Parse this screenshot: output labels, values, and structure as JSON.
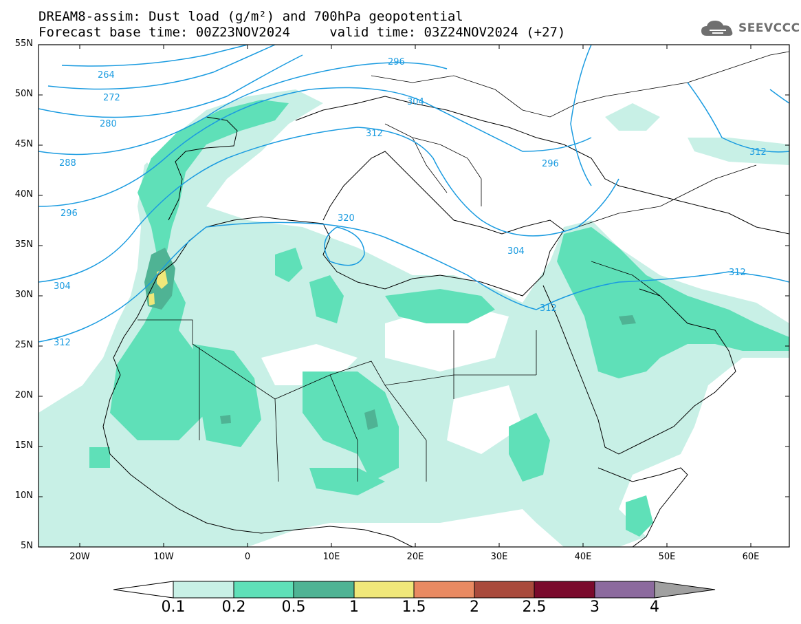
{
  "title": {
    "line1": "DREAM8-assim: Dust load (g/m²) and 700hPa geopotential",
    "line2": "Forecast base time: 00Z23NOV2024     valid time: 03Z24NOV2024 (+27)"
  },
  "logo": {
    "text": "SEEVCCC",
    "icon": "cloud-icon"
  },
  "axes": {
    "lat_labels": [
      "55N",
      "50N",
      "45N",
      "40N",
      "35N",
      "30N",
      "25N",
      "20N",
      "15N",
      "10N",
      "5N"
    ],
    "lon_labels": [
      "20W",
      "10W",
      "0",
      "10E",
      "20E",
      "30E",
      "40E",
      "50E",
      "60E"
    ]
  },
  "contours": {
    "labels": [
      "264",
      "272",
      "280",
      "288",
      "296",
      "304",
      "312",
      "296",
      "304",
      "312",
      "320",
      "296",
      "304",
      "312",
      "312",
      "312"
    ],
    "color": "#1a9be0"
  },
  "colorbar": {
    "labels": [
      "0.1",
      "0.2",
      "0.5",
      "1",
      "1.5",
      "2",
      "2.5",
      "3",
      "4"
    ],
    "colors": [
      "#c8f0e6",
      "#5fe0b8",
      "#4fb394",
      "#f0e87a",
      "#e98a62",
      "#a94a3c",
      "#7a0a2c",
      "#8c6a9e",
      "#a0a0a0"
    ]
  }
}
